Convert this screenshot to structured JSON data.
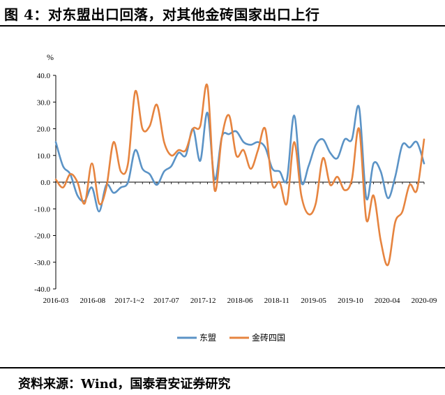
{
  "title": "图 4：对东盟出口回落，对其他金砖国家出口上行",
  "source": "资料来源：Wind，国泰君安证券研究",
  "colors": {
    "asean": "#5b93c6",
    "brics": "#e6843f"
  },
  "chart_data": {
    "type": "line",
    "ylabel": "%",
    "ylim": [
      -40,
      40
    ],
    "yticks": [
      "40.0",
      "30.0",
      "20.0",
      "10.0",
      "0.0",
      "-10.0",
      "-20.0",
      "-30.0",
      "-40.0"
    ],
    "xtick_labels": [
      "2016-03",
      "2016-08",
      "2017-1~2",
      "2017-07",
      "2017-12",
      "2018-06",
      "2018-11",
      "2019-05",
      "2019-10",
      "2020-04",
      "2020-09"
    ],
    "x": [
      "2016-03",
      "2016-04",
      "2016-05",
      "2016-06",
      "2016-07",
      "2016-08",
      "2016-09",
      "2016-10",
      "2016-11",
      "2016-12",
      "2017-1~2",
      "2017-03",
      "2017-04",
      "2017-05",
      "2017-06",
      "2017-07",
      "2017-08",
      "2017-09",
      "2017-10",
      "2017-11",
      "2017-12",
      "2018-1~2",
      "2018-03",
      "2018-04",
      "2018-05",
      "2018-06",
      "2018-07",
      "2018-08",
      "2018-09",
      "2018-10",
      "2018-11",
      "2018-12",
      "2019-1~2",
      "2019-03",
      "2019-04",
      "2019-05",
      "2019-06",
      "2019-07",
      "2019-08",
      "2019-09",
      "2019-10",
      "2019-11",
      "2019-12",
      "2020-1~2",
      "2020-03",
      "2020-04",
      "2020-05",
      "2020-06",
      "2020-07",
      "2020-08",
      "2020-09",
      "2020-10"
    ],
    "series": [
      {
        "name": "东盟",
        "values": [
          15,
          6,
          3,
          -5,
          -7,
          -2,
          -11,
          -1,
          -4,
          -2,
          0,
          12,
          5,
          3,
          -1,
          4,
          6,
          11,
          10,
          20,
          8,
          26,
          1,
          17,
          18,
          19,
          15,
          14,
          15,
          13,
          5,
          4,
          1,
          25,
          0,
          6,
          14,
          16,
          11,
          9,
          16,
          16,
          28,
          -6,
          7,
          4,
          -6,
          2,
          14,
          13,
          15,
          7
        ]
      },
      {
        "name": "金砖四国",
        "values": [
          1,
          -2,
          3,
          0,
          -8,
          7,
          -8,
          -2,
          15,
          4,
          7,
          34,
          20,
          21,
          29,
          15,
          10,
          12,
          12,
          20,
          21,
          36,
          -3,
          17,
          25,
          10,
          12,
          5,
          12,
          20,
          -1,
          0,
          -8,
          15,
          -5,
          -12,
          -8,
          9,
          -1,
          2,
          -3,
          1,
          20,
          -14,
          -5,
          -22,
          -31,
          -15,
          -11,
          -1,
          -3,
          16
        ]
      }
    ],
    "legend_position": "bottom",
    "grid": false
  }
}
